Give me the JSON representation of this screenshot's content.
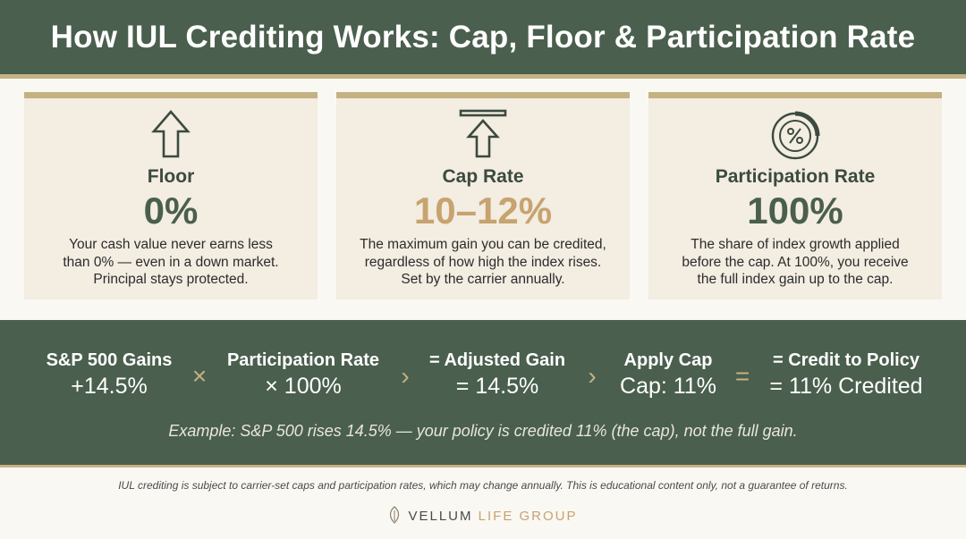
{
  "header": {
    "title": "How IUL Crediting Works: Cap, Floor & Participation Rate"
  },
  "cards": [
    {
      "icon": "arrow-up-icon",
      "label": "Floor",
      "value": "0%",
      "desc": [
        "Your cash value never earns less",
        "than 0% — even in a down market.",
        "Principal stays protected."
      ]
    },
    {
      "icon": "capped-arrow-icon",
      "label": "Cap Rate",
      "value": "10–12%",
      "desc": [
        "The maximum gain you can be credited,",
        "regardless of how high the index rises.",
        "Set by the carrier annually."
      ]
    },
    {
      "icon": "percent-gauge-icon",
      "label": "Participation Rate",
      "value": "100%",
      "desc": [
        "The share of index growth applied",
        "before the cap. At 100%, you receive",
        "the full index gain up to the cap."
      ]
    }
  ],
  "flow": {
    "steps": [
      {
        "head": "S&P 500 Gains",
        "value": "+14.5%"
      },
      {
        "head": "Participation Rate",
        "value": "× 100%"
      },
      {
        "head": "= Adjusted Gain",
        "value": "= 14.5%"
      },
      {
        "head": "Apply Cap",
        "value": "Cap: 11%"
      },
      {
        "head": "= Credit to Policy",
        "value": "= 11% Credited"
      }
    ],
    "operators": [
      "×",
      "›",
      "›",
      "="
    ],
    "example": "Example: S&P 500 rises 14.5% — your policy is credited 11% (the cap), not the full gain."
  },
  "footer": {
    "disclaimer": "IUL crediting is subject to carrier-set caps and participation rates, which may change annually. This is educational content only, not a guarantee of returns.",
    "brand_primary": "VELLUM",
    "brand_secondary": "LIFE GROUP"
  },
  "colors": {
    "green": "#4a5f4d",
    "gold": "#c4b283",
    "cream": "#f3ede2",
    "value_gold": "#c7a36f"
  }
}
